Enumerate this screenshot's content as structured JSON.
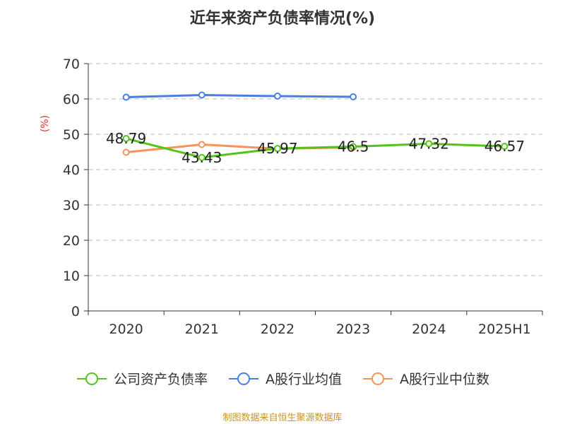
{
  "chart_data": {
    "type": "line",
    "title": "近年来资产负债率情况(%)",
    "ylabel": "(%)",
    "xlabel": "",
    "categories": [
      "2020",
      "2021",
      "2022",
      "2023",
      "2024",
      "2025H1"
    ],
    "ylim": [
      0,
      70
    ],
    "yticks": [
      0,
      10,
      20,
      30,
      40,
      50,
      60,
      70
    ],
    "grid": true,
    "legend": "bottom",
    "series": [
      {
        "name": "公司资产负债率",
        "color": "#52c41a",
        "values": [
          48.79,
          43.43,
          45.97,
          46.5,
          47.32,
          46.57
        ],
        "labels": [
          "48.79",
          "43.43",
          "45.97",
          "46.5",
          "47.32",
          "46.57"
        ]
      },
      {
        "name": "A股行业均值",
        "color": "#4a7ee0",
        "values": [
          60.5,
          61.1,
          60.8,
          60.6,
          null,
          null
        ]
      },
      {
        "name": "A股行业中位数",
        "color": "#f4935c",
        "values": [
          44.9,
          47.1,
          45.9,
          46.3,
          null,
          null
        ]
      }
    ]
  },
  "source_text": "制图数据来自恒生聚源数据库"
}
